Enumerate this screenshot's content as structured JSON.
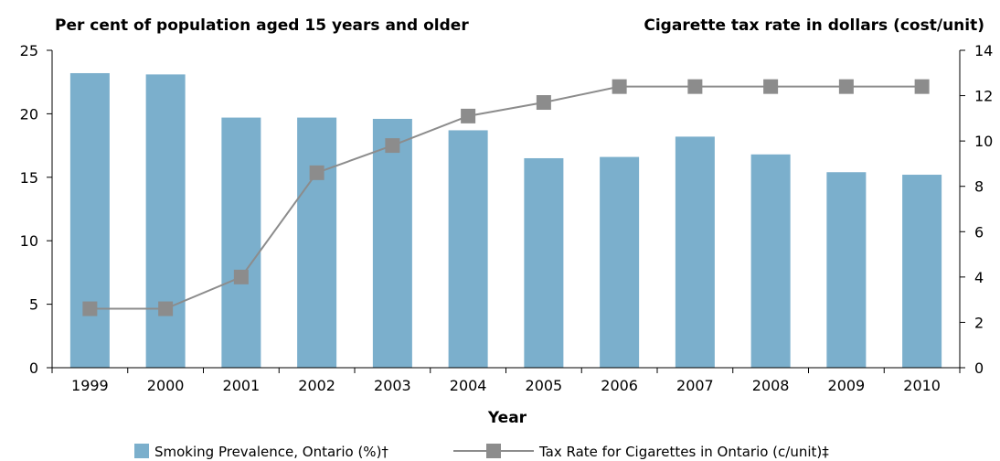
{
  "chart_data": {
    "type": "bar",
    "left_title": "Per cent of population aged 15 years and older",
    "right_title": "Cigarette tax rate in dollars (cost/unit)",
    "xlabel": "Year",
    "categories": [
      "1999",
      "2000",
      "2001",
      "2002",
      "2003",
      "2004",
      "2005",
      "2006",
      "2007",
      "2008",
      "2009",
      "2010"
    ],
    "y_left": {
      "ylim": [
        0,
        25
      ],
      "ticks": [
        "0",
        "5",
        "10",
        "15",
        "20",
        "25"
      ]
    },
    "y_right": {
      "ylim": [
        0,
        14
      ],
      "ticks": [
        "0",
        "2",
        "4",
        "6",
        "8",
        "10",
        "12",
        "14"
      ]
    },
    "series": [
      {
        "name": "Smoking Prevalence, Ontario (%)†",
        "type": "bar",
        "axis": "left",
        "color": "#7bafcc",
        "values": [
          23.2,
          23.1,
          19.7,
          19.7,
          19.6,
          18.7,
          16.5,
          16.6,
          18.2,
          16.8,
          15.4,
          15.2
        ]
      },
      {
        "name": "Tax Rate for Cigarettes in Ontario (c/unit)‡",
        "type": "line",
        "axis": "right",
        "color": "#8c8c8c",
        "values": [
          2.6,
          2.6,
          4.0,
          8.6,
          9.8,
          11.1,
          11.7,
          12.4,
          12.4,
          12.4,
          12.4,
          12.4
        ]
      }
    ],
    "grid": false,
    "legend": "bottom"
  }
}
